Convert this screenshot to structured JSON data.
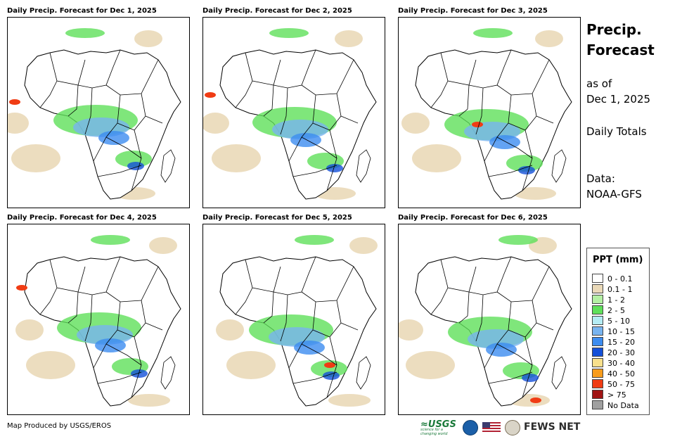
{
  "panels": [
    {
      "title": "Daily Precip. Forecast for Dec 1, 2025"
    },
    {
      "title": "Daily Precip. Forecast for Dec 2, 2025"
    },
    {
      "title": "Daily Precip. Forecast for Dec 3, 2025"
    },
    {
      "title": "Daily Precip. Forecast for Dec 4, 2025"
    },
    {
      "title": "Daily Precip. Forecast for Dec 5, 2025"
    },
    {
      "title": "Daily Precip. Forecast for Dec 6, 2025"
    }
  ],
  "side": {
    "title_line1": "Precip.",
    "title_line2": "Forecast",
    "as_of_line1": "as of",
    "as_of_line2": "Dec 1, 2025",
    "totals": "Daily Totals",
    "data_line1": "Data:",
    "data_line2": "NOAA-GFS"
  },
  "legend": {
    "title": "PPT (mm)",
    "items": [
      {
        "label": "0 - 0.1",
        "color": "#ffffff"
      },
      {
        "label": "0.1 - 1",
        "color": "#ead9b8"
      },
      {
        "label": "1 - 2",
        "color": "#b4f0a4"
      },
      {
        "label": "2 - 5",
        "color": "#5fe05a"
      },
      {
        "label": "5 - 10",
        "color": "#b4ecf4"
      },
      {
        "label": "10 - 15",
        "color": "#78b4f0"
      },
      {
        "label": "15 - 20",
        "color": "#3c8cf0"
      },
      {
        "label": "20 - 30",
        "color": "#1450d8"
      },
      {
        "label": "30 - 40",
        "color": "#f8e08c"
      },
      {
        "label": "40 - 50",
        "color": "#f89c1c"
      },
      {
        "label": "50 - 75",
        "color": "#f03c14"
      },
      {
        "label": "> 75",
        "color": "#a01414"
      },
      {
        "label": "No Data",
        "color": "#a0a0a0"
      }
    ]
  },
  "footer": {
    "credit": "Map Produced by USGS/EROS",
    "usgs_logo": "≈USGS",
    "usgs_tagline": "science for a changing world",
    "fews_logo": "FEWS NET"
  }
}
